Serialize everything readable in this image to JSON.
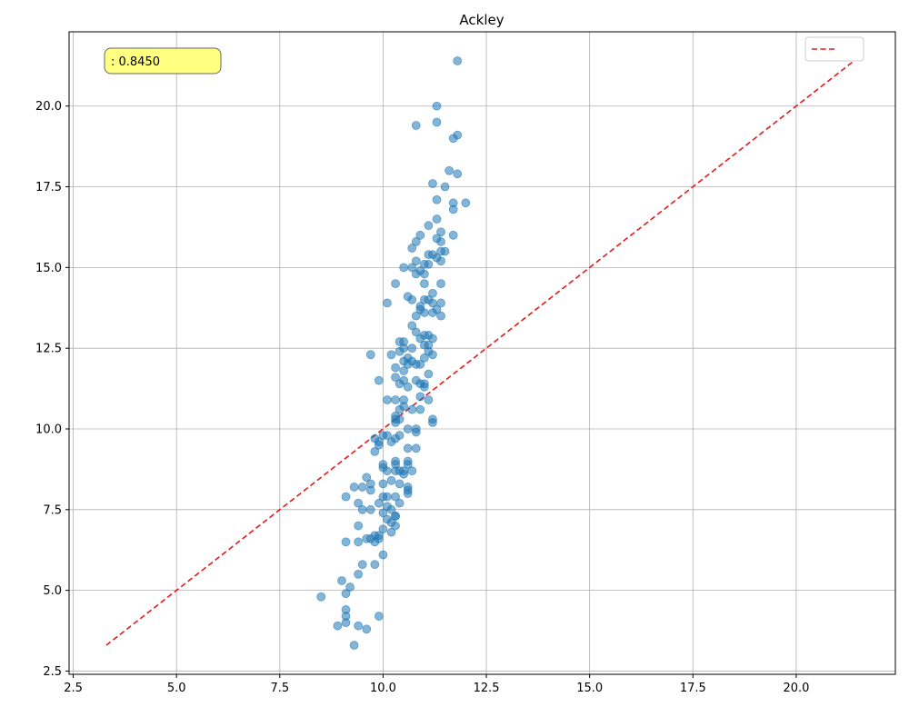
{
  "chart_data": {
    "type": "scatter",
    "title": "Ackley",
    "xlabel": "",
    "ylabel": "",
    "xlim": [
      2.4,
      22.4
    ],
    "ylim": [
      2.4,
      22.3
    ],
    "x_ticks": [
      2.5,
      5.0,
      7.5,
      10.0,
      12.5,
      15.0,
      17.5,
      20.0
    ],
    "y_ticks": [
      2.5,
      5.0,
      7.5,
      10.0,
      12.5,
      15.0,
      17.5,
      20.0
    ],
    "x_tick_labels": [
      "2.5",
      "5.0",
      "7.5",
      "10.0",
      "12.5",
      "15.0",
      "17.5",
      "20.0"
    ],
    "y_tick_labels": [
      "2.5",
      "5.0",
      "7.5",
      "10.0",
      "12.5",
      "15.0",
      "17.5",
      "20.0"
    ],
    "grid": true,
    "legend_position": "top-right",
    "annotation": {
      "label": "",
      "value": ": 0.8450",
      "position": "top-left"
    },
    "colors": {
      "points": "#1f77b4",
      "reference_line": "#e41a1c",
      "annotation_bg": "#ffff80",
      "grid": "#b0b0b0"
    },
    "series": [
      {
        "name": "",
        "kind": "points",
        "points": [
          [
            11.8,
            21.4
          ],
          [
            11.3,
            20.0
          ],
          [
            10.8,
            19.4
          ],
          [
            11.3,
            19.5
          ],
          [
            11.8,
            19.1
          ],
          [
            11.7,
            19.0
          ],
          [
            11.6,
            18.0
          ],
          [
            11.8,
            17.9
          ],
          [
            11.2,
            17.6
          ],
          [
            11.5,
            17.5
          ],
          [
            11.3,
            17.1
          ],
          [
            11.7,
            17.0
          ],
          [
            12.0,
            17.0
          ],
          [
            11.7,
            16.8
          ],
          [
            11.3,
            16.5
          ],
          [
            11.1,
            16.3
          ],
          [
            11.4,
            16.1
          ],
          [
            10.9,
            16.0
          ],
          [
            11.7,
            16.0
          ],
          [
            11.3,
            15.9
          ],
          [
            10.8,
            15.8
          ],
          [
            11.4,
            15.8
          ],
          [
            10.7,
            15.6
          ],
          [
            11.4,
            15.5
          ],
          [
            11.5,
            15.5
          ],
          [
            11.1,
            15.4
          ],
          [
            11.2,
            15.4
          ],
          [
            11.3,
            15.3
          ],
          [
            10.8,
            15.2
          ],
          [
            11.4,
            15.2
          ],
          [
            11.1,
            15.1
          ],
          [
            11.0,
            15.1
          ],
          [
            10.5,
            15.0
          ],
          [
            10.7,
            15.0
          ],
          [
            10.9,
            14.9
          ],
          [
            10.8,
            14.8
          ],
          [
            11.0,
            14.8
          ],
          [
            11.4,
            14.5
          ],
          [
            10.3,
            14.5
          ],
          [
            11.0,
            14.5
          ],
          [
            11.2,
            14.2
          ],
          [
            10.6,
            14.1
          ],
          [
            10.7,
            14.0
          ],
          [
            11.0,
            14.0
          ],
          [
            11.1,
            14.0
          ],
          [
            10.1,
            13.9
          ],
          [
            11.4,
            13.9
          ],
          [
            10.9,
            13.8
          ],
          [
            11.2,
            13.9
          ],
          [
            11.0,
            13.6
          ],
          [
            11.3,
            13.7
          ],
          [
            10.9,
            13.7
          ],
          [
            11.2,
            13.6
          ],
          [
            11.4,
            13.5
          ],
          [
            10.8,
            13.5
          ],
          [
            10.7,
            13.2
          ],
          [
            10.8,
            13.0
          ],
          [
            11.1,
            12.9
          ],
          [
            11.0,
            12.9
          ],
          [
            10.9,
            12.8
          ],
          [
            11.2,
            12.8
          ],
          [
            10.5,
            12.7
          ],
          [
            10.4,
            12.7
          ],
          [
            11.0,
            12.6
          ],
          [
            11.1,
            12.6
          ],
          [
            10.7,
            12.5
          ],
          [
            10.5,
            12.5
          ],
          [
            10.4,
            12.4
          ],
          [
            11.1,
            12.4
          ],
          [
            11.2,
            12.3
          ],
          [
            9.7,
            12.3
          ],
          [
            10.2,
            12.3
          ],
          [
            10.6,
            12.2
          ],
          [
            11.0,
            12.2
          ],
          [
            10.5,
            12.1
          ],
          [
            10.7,
            12.1
          ],
          [
            10.8,
            12.0
          ],
          [
            10.9,
            12.0
          ],
          [
            10.6,
            12.0
          ],
          [
            10.3,
            11.9
          ],
          [
            10.5,
            11.8
          ],
          [
            11.1,
            11.7
          ],
          [
            10.3,
            11.6
          ],
          [
            10.5,
            11.5
          ],
          [
            10.8,
            11.5
          ],
          [
            10.9,
            11.4
          ],
          [
            11.0,
            11.4
          ],
          [
            9.9,
            11.5
          ],
          [
            10.4,
            11.4
          ],
          [
            10.6,
            11.3
          ],
          [
            11.0,
            11.3
          ],
          [
            10.9,
            11.0
          ],
          [
            10.1,
            10.9
          ],
          [
            10.3,
            10.9
          ],
          [
            10.5,
            10.9
          ],
          [
            11.1,
            10.9
          ],
          [
            10.5,
            10.7
          ],
          [
            10.7,
            10.6
          ],
          [
            10.9,
            10.6
          ],
          [
            10.4,
            10.6
          ],
          [
            10.3,
            10.4
          ],
          [
            10.3,
            10.3
          ],
          [
            10.4,
            10.3
          ],
          [
            10.3,
            10.2
          ],
          [
            11.2,
            10.3
          ],
          [
            11.2,
            10.2
          ],
          [
            10.6,
            10.0
          ],
          [
            10.8,
            10.0
          ],
          [
            10.8,
            9.9
          ],
          [
            10.1,
            9.8
          ],
          [
            10.0,
            9.8
          ],
          [
            10.4,
            9.8
          ],
          [
            10.3,
            9.7
          ],
          [
            9.8,
            9.7
          ],
          [
            9.9,
            9.6
          ],
          [
            9.9,
            9.5
          ],
          [
            10.2,
            9.6
          ],
          [
            10.6,
            9.4
          ],
          [
            10.8,
            9.4
          ],
          [
            9.8,
            9.3
          ],
          [
            10.3,
            9.0
          ],
          [
            10.6,
            9.0
          ],
          [
            10.3,
            8.9
          ],
          [
            10.0,
            8.9
          ],
          [
            10.0,
            8.8
          ],
          [
            10.6,
            8.9
          ],
          [
            10.1,
            8.7
          ],
          [
            10.3,
            8.7
          ],
          [
            10.5,
            8.7
          ],
          [
            10.7,
            8.7
          ],
          [
            10.4,
            8.7
          ],
          [
            10.5,
            8.6
          ],
          [
            9.6,
            8.5
          ],
          [
            10.2,
            8.4
          ],
          [
            10.0,
            8.3
          ],
          [
            9.3,
            8.2
          ],
          [
            9.5,
            8.2
          ],
          [
            9.7,
            8.3
          ],
          [
            10.4,
            8.3
          ],
          [
            10.6,
            8.2
          ],
          [
            10.6,
            8.1
          ],
          [
            10.6,
            8.0
          ],
          [
            9.7,
            8.1
          ],
          [
            10.0,
            7.9
          ],
          [
            9.1,
            7.9
          ],
          [
            10.1,
            7.9
          ],
          [
            10.3,
            7.9
          ],
          [
            9.9,
            7.7
          ],
          [
            10.4,
            7.7
          ],
          [
            9.4,
            7.7
          ],
          [
            10.1,
            7.6
          ],
          [
            9.5,
            7.5
          ],
          [
            9.7,
            7.5
          ],
          [
            10.2,
            7.5
          ],
          [
            10.0,
            7.4
          ],
          [
            10.3,
            7.3
          ],
          [
            10.3,
            7.3
          ],
          [
            10.1,
            7.2
          ],
          [
            10.2,
            7.1
          ],
          [
            9.4,
            7.0
          ],
          [
            10.3,
            7.0
          ],
          [
            10.0,
            6.9
          ],
          [
            10.2,
            6.8
          ],
          [
            9.9,
            6.7
          ],
          [
            9.8,
            6.7
          ],
          [
            9.6,
            6.6
          ],
          [
            9.9,
            6.6
          ],
          [
            9.7,
            6.6
          ],
          [
            9.1,
            6.5
          ],
          [
            9.4,
            6.5
          ],
          [
            9.8,
            6.5
          ],
          [
            10.0,
            6.1
          ],
          [
            9.5,
            5.8
          ],
          [
            9.8,
            5.8
          ],
          [
            9.4,
            5.5
          ],
          [
            9.0,
            5.3
          ],
          [
            9.2,
            5.1
          ],
          [
            9.1,
            4.9
          ],
          [
            8.5,
            4.8
          ],
          [
            9.1,
            4.4
          ],
          [
            9.9,
            4.2
          ],
          [
            9.1,
            4.2
          ],
          [
            9.1,
            4.0
          ],
          [
            8.9,
            3.9
          ],
          [
            9.4,
            3.9
          ],
          [
            9.6,
            3.8
          ],
          [
            9.3,
            3.3
          ]
        ]
      },
      {
        "name": "",
        "kind": "line",
        "points": [
          [
            3.3,
            3.3
          ],
          [
            21.4,
            21.4
          ]
        ]
      }
    ]
  }
}
